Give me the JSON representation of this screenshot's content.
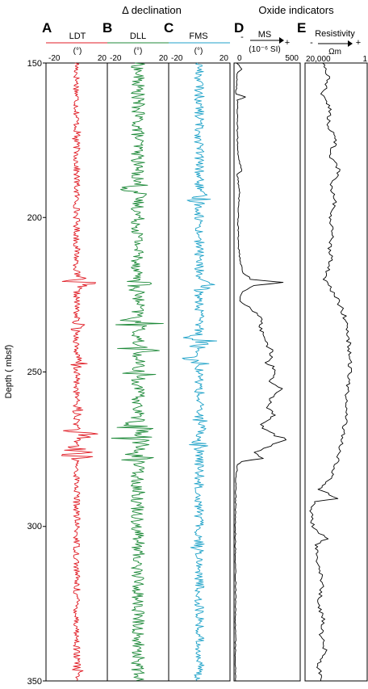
{
  "chart_data": {
    "type": "line",
    "depth_axis": {
      "label": "Depth ( mbsf)",
      "range": [
        150,
        350
      ],
      "ticks": [
        "150",
        "200",
        "250",
        "300",
        "350"
      ]
    },
    "group_titles": {
      "declination": "Δ declination",
      "oxide": "Oxide indicators"
    },
    "panels": [
      {
        "id": "A",
        "letter": "A",
        "name": "LDT",
        "unit": "(°)",
        "xlim": [
          -20,
          20
        ],
        "tick_left": "-20",
        "tick_right": "20",
        "color": "#e01b24",
        "amplitude": 2.2,
        "bursts": [
          {
            "depth": 174,
            "amp": 6
          },
          {
            "depth": 221,
            "amp": 13
          },
          {
            "depth": 235,
            "amp": 6
          },
          {
            "depth": 247,
            "amp": 8
          },
          {
            "depth": 263,
            "amp": 6
          },
          {
            "depth": 270,
            "amp": 14
          },
          {
            "depth": 276,
            "amp": 20
          },
          {
            "depth": 346,
            "amp": 6
          }
        ]
      },
      {
        "id": "B",
        "letter": "B",
        "name": "DLL",
        "unit": "(°)",
        "xlim": [
          -20,
          20
        ],
        "tick_left": "-20",
        "tick_right": "20",
        "color": "#1f8a3a",
        "amplitude": 4.5,
        "bursts": [
          {
            "depth": 191,
            "amp": 14
          },
          {
            "depth": 222,
            "amp": 12
          },
          {
            "depth": 234,
            "amp": 18
          },
          {
            "depth": 243,
            "amp": 15
          },
          {
            "depth": 251,
            "amp": 14
          },
          {
            "depth": 268,
            "amp": 17
          },
          {
            "depth": 272,
            "amp": 19
          },
          {
            "depth": 278,
            "amp": 14
          }
        ]
      },
      {
        "id": "C",
        "letter": "C",
        "name": "FMS",
        "unit": "(°)",
        "xlim": [
          -20,
          20
        ],
        "tick_left": "-20",
        "tick_right": "20",
        "color": "#1fa2c8",
        "amplitude": 3.2,
        "bursts": [
          {
            "depth": 194,
            "amp": 9
          },
          {
            "depth": 222,
            "amp": 11
          },
          {
            "depth": 240,
            "amp": 16
          },
          {
            "depth": 246,
            "amp": 12
          },
          {
            "depth": 267,
            "amp": 9
          },
          {
            "depth": 274,
            "amp": 10
          },
          {
            "depth": 306,
            "amp": 8
          }
        ]
      },
      {
        "id": "D",
        "letter": "D",
        "name": "MS",
        "unit": "(10⁻⁶ SI)",
        "xlim": [
          0,
          500
        ],
        "tick_left": "0",
        "tick_right": "500",
        "color": "#000000",
        "minus": "-",
        "plus": "+",
        "profile": [
          [
            150,
            20
          ],
          [
            152,
            60
          ],
          [
            153,
            25
          ],
          [
            160,
            15
          ],
          [
            161,
            90
          ],
          [
            162,
            25
          ],
          [
            170,
            25
          ],
          [
            180,
            30
          ],
          [
            185,
            60
          ],
          [
            186,
            25
          ],
          [
            192,
            40
          ],
          [
            200,
            30
          ],
          [
            210,
            35
          ],
          [
            215,
            50
          ],
          [
            218,
            70
          ],
          [
            220,
            130
          ],
          [
            221,
            360
          ],
          [
            222,
            160
          ],
          [
            224,
            60
          ],
          [
            227,
            40
          ],
          [
            229,
            110
          ],
          [
            231,
            170
          ],
          [
            233,
            210
          ],
          [
            236,
            200
          ],
          [
            240,
            240
          ],
          [
            244,
            290
          ],
          [
            247,
            250
          ],
          [
            250,
            330
          ],
          [
            253,
            280
          ],
          [
            256,
            360
          ],
          [
            258,
            300
          ],
          [
            261,
            250
          ],
          [
            264,
            310
          ],
          [
            267,
            190
          ],
          [
            270,
            290
          ],
          [
            272,
            390
          ],
          [
            274,
            260
          ],
          [
            276,
            160
          ],
          [
            278,
            210
          ],
          [
            279,
            60
          ],
          [
            280,
            25
          ],
          [
            285,
            15
          ],
          [
            300,
            10
          ],
          [
            320,
            12
          ],
          [
            340,
            10
          ],
          [
            350,
            12
          ]
        ]
      },
      {
        "id": "E",
        "letter": "E",
        "name": "Resistivity",
        "unit": "Ωm",
        "xlim": [
          "20,000",
          "1"
        ],
        "tick_left": "20,000",
        "tick_right": "1",
        "color": "#000000",
        "minus": "-",
        "plus": "+",
        "profile": [
          [
            150,
            0.3
          ],
          [
            155,
            0.38
          ],
          [
            160,
            0.28
          ],
          [
            165,
            0.42
          ],
          [
            170,
            0.36
          ],
          [
            175,
            0.5
          ],
          [
            180,
            0.4
          ],
          [
            185,
            0.55
          ],
          [
            190,
            0.42
          ],
          [
            195,
            0.48
          ],
          [
            200,
            0.38
          ],
          [
            205,
            0.45
          ],
          [
            210,
            0.4
          ],
          [
            215,
            0.42
          ],
          [
            220,
            0.3
          ],
          [
            225,
            0.48
          ],
          [
            230,
            0.6
          ],
          [
            235,
            0.68
          ],
          [
            240,
            0.7
          ],
          [
            245,
            0.72
          ],
          [
            250,
            0.72
          ],
          [
            255,
            0.68
          ],
          [
            260,
            0.66
          ],
          [
            265,
            0.66
          ],
          [
            270,
            0.62
          ],
          [
            275,
            0.55
          ],
          [
            280,
            0.5
          ],
          [
            285,
            0.4
          ],
          [
            288,
            0.22
          ],
          [
            291,
            0.55
          ],
          [
            292,
            0.15
          ],
          [
            295,
            0.1
          ],
          [
            300,
            0.12
          ],
          [
            304,
            0.35
          ],
          [
            306,
            0.18
          ],
          [
            310,
            0.2
          ],
          [
            315,
            0.25
          ],
          [
            320,
            0.28
          ],
          [
            325,
            0.2
          ],
          [
            330,
            0.3
          ],
          [
            335,
            0.25
          ],
          [
            340,
            0.32
          ],
          [
            345,
            0.22
          ],
          [
            350,
            0.25
          ]
        ]
      }
    ]
  }
}
